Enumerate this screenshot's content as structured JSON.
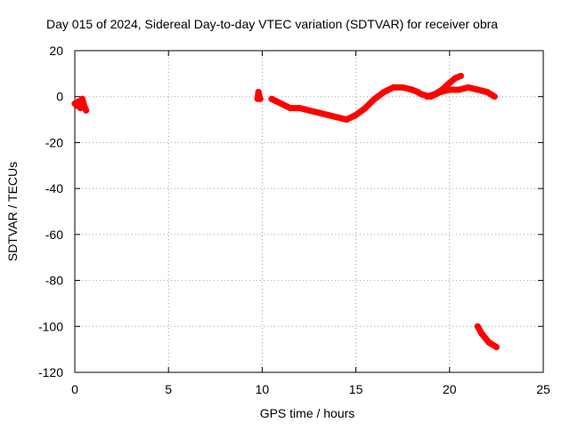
{
  "chart_data": {
    "type": "scatter",
    "title": "Day 015 of 2024, Sidereal Day-to-day VTEC variation (SDTVAR) for receiver obra",
    "xlabel": "GPS time / hours",
    "ylabel": "SDTVAR / TECUs",
    "xlim": [
      0,
      25
    ],
    "ylim": [
      -120,
      20
    ],
    "xticks": [
      0,
      5,
      10,
      15,
      20,
      25
    ],
    "yticks": [
      -120,
      -100,
      -80,
      -60,
      -40,
      -20,
      0,
      20
    ],
    "grid": true,
    "series": [
      {
        "name": "SDTVAR",
        "color": "#ff0000",
        "segments": [
          {
            "x": [
              0.0,
              0.1,
              0.2,
              0.3,
              0.4,
              0.5,
              0.6
            ],
            "y": [
              -3,
              -4,
              -2,
              -5,
              -1,
              -4,
              -6
            ]
          },
          {
            "x": [
              9.75,
              9.8,
              9.85,
              9.9
            ],
            "y": [
              -1,
              2,
              0,
              -1
            ]
          },
          {
            "x": [
              10.5,
              11.0,
              11.5,
              12.0,
              12.5,
              13.0,
              13.5,
              14.0,
              14.5,
              15.0,
              15.5,
              16.0,
              16.5,
              17.0,
              17.5,
              18.0,
              18.3,
              18.5,
              19.0,
              19.5,
              20.0,
              20.5,
              21.0,
              21.5,
              22.0,
              22.4
            ],
            "y": [
              -1,
              -3,
              -5,
              -5,
              -6,
              -7,
              -8,
              -9,
              -10,
              -8,
              -5,
              -1,
              2,
              4,
              4,
              3,
              2,
              1,
              0,
              2,
              3,
              3,
              4,
              3,
              2,
              0
            ]
          },
          {
            "x": [
              18.8,
              19.2,
              19.6,
              20.0,
              20.3,
              20.6
            ],
            "y": [
              0,
              1,
              3,
              6,
              8,
              9
            ]
          },
          {
            "x": [
              21.5,
              21.7,
              21.9,
              22.1,
              22.3,
              22.5
            ],
            "y": [
              -100,
              -103,
              -105,
              -107,
              -108,
              -109
            ]
          }
        ]
      }
    ]
  }
}
